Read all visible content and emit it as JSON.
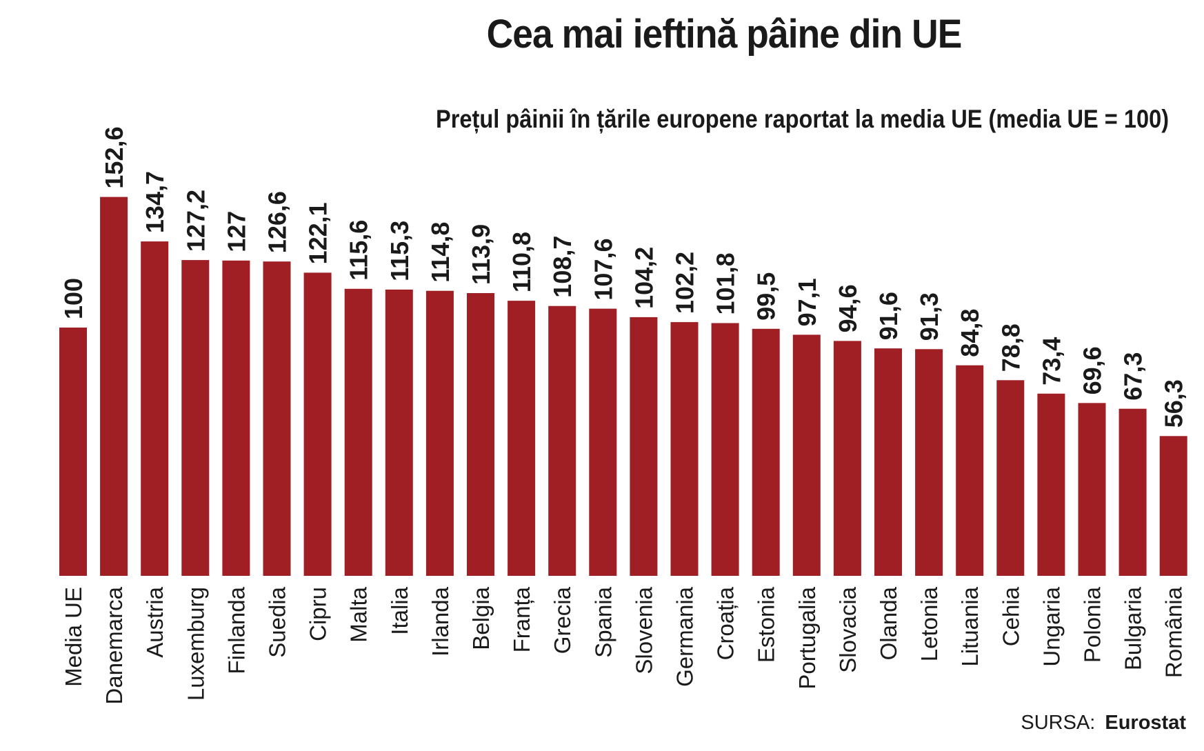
{
  "title": "Cea mai ieftină pâine din UE",
  "subtitle": "Prețul pâinii în țările europene raportat la media UE (media UE = 100)",
  "source": {
    "label": "SURSA:",
    "value": "Eurostat"
  },
  "colors": {
    "bar": "#a01f24",
    "text": "#1a1a1a"
  },
  "chart_data": {
    "type": "bar",
    "title": "Cea mai ieftină pâine din UE",
    "subtitle": "Prețul pâinii în țările europene raportat la media UE (media UE = 100)",
    "xlabel": "",
    "ylabel": "",
    "ylim": [
      0,
      160
    ],
    "grid": false,
    "legend": "none",
    "categories": [
      "Media UE",
      "Danemarca",
      "Austria",
      "Luxemburg",
      "Finlanda",
      "Suedia",
      "Cipru",
      "Malta",
      "Italia",
      "Irlanda",
      "Belgia",
      "Franța",
      "Grecia",
      "Spania",
      "Slovenia",
      "Germania",
      "Croația",
      "Estonia",
      "Portugalia",
      "Slovacia",
      "Olanda",
      "Letonia",
      "Lituania",
      "Cehia",
      "Ungaria",
      "Polonia",
      "Bulgaria",
      "România"
    ],
    "values": [
      100,
      152.6,
      134.7,
      127.2,
      127,
      126.6,
      122.1,
      115.6,
      115.3,
      114.8,
      113.9,
      110.8,
      108.7,
      107.6,
      104.2,
      102.2,
      101.8,
      99.5,
      97.1,
      94.6,
      91.6,
      91.3,
      84.8,
      78.8,
      73.4,
      69.6,
      67.3,
      56.3
    ],
    "value_labels": [
      "100",
      "152,6",
      "134,7",
      "127,2",
      "127",
      "126,6",
      "122,1",
      "115,6",
      "115,3",
      "114,8",
      "113,9",
      "110,8",
      "108,7",
      "107,6",
      "104,2",
      "102,2",
      "101,8",
      "99,5",
      "97,1",
      "94,6",
      "91,6",
      "91,3",
      "84,8",
      "78,8",
      "73,4",
      "69,6",
      "67,3",
      "56,3"
    ]
  }
}
